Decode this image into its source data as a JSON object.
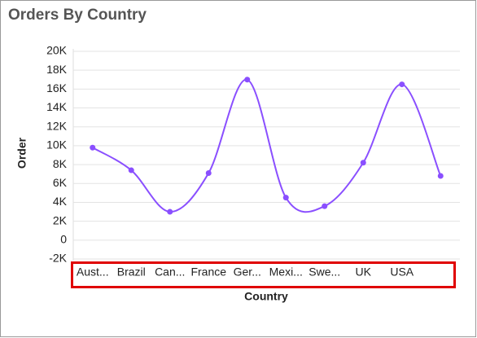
{
  "chart_data": {
    "type": "line",
    "title": "Orders By Country",
    "x_label": "Country",
    "y_label": "Order",
    "categories": [
      "Aust...",
      "Brazil",
      "Can...",
      "France",
      "Ger...",
      "Mexi...",
      "Swe...",
      "UK",
      "USA",
      null
    ],
    "values": [
      9800,
      7400,
      3000,
      7100,
      17000,
      4500,
      3600,
      8200,
      16500,
      6800
    ],
    "color": "#8a4fff",
    "smooth": true,
    "grid": true,
    "ylim": [
      -2000,
      20000
    ],
    "yticks": [
      {
        "value": -2000,
        "label": "-2K"
      },
      0,
      {
        "value": 2000,
        "label": "2K"
      },
      {
        "value": 4000,
        "label": "4K"
      },
      {
        "value": 6000,
        "label": "6K"
      },
      {
        "value": 8000,
        "label": "8K"
      },
      {
        "value": 10000,
        "label": "10K"
      },
      {
        "value": 12000,
        "label": "12K"
      },
      {
        "value": 14000,
        "label": "14K"
      },
      {
        "value": 16000,
        "label": "16K"
      },
      {
        "value": 18000,
        "label": "18K"
      },
      {
        "value": 20000,
        "label": "20K"
      }
    ]
  }
}
